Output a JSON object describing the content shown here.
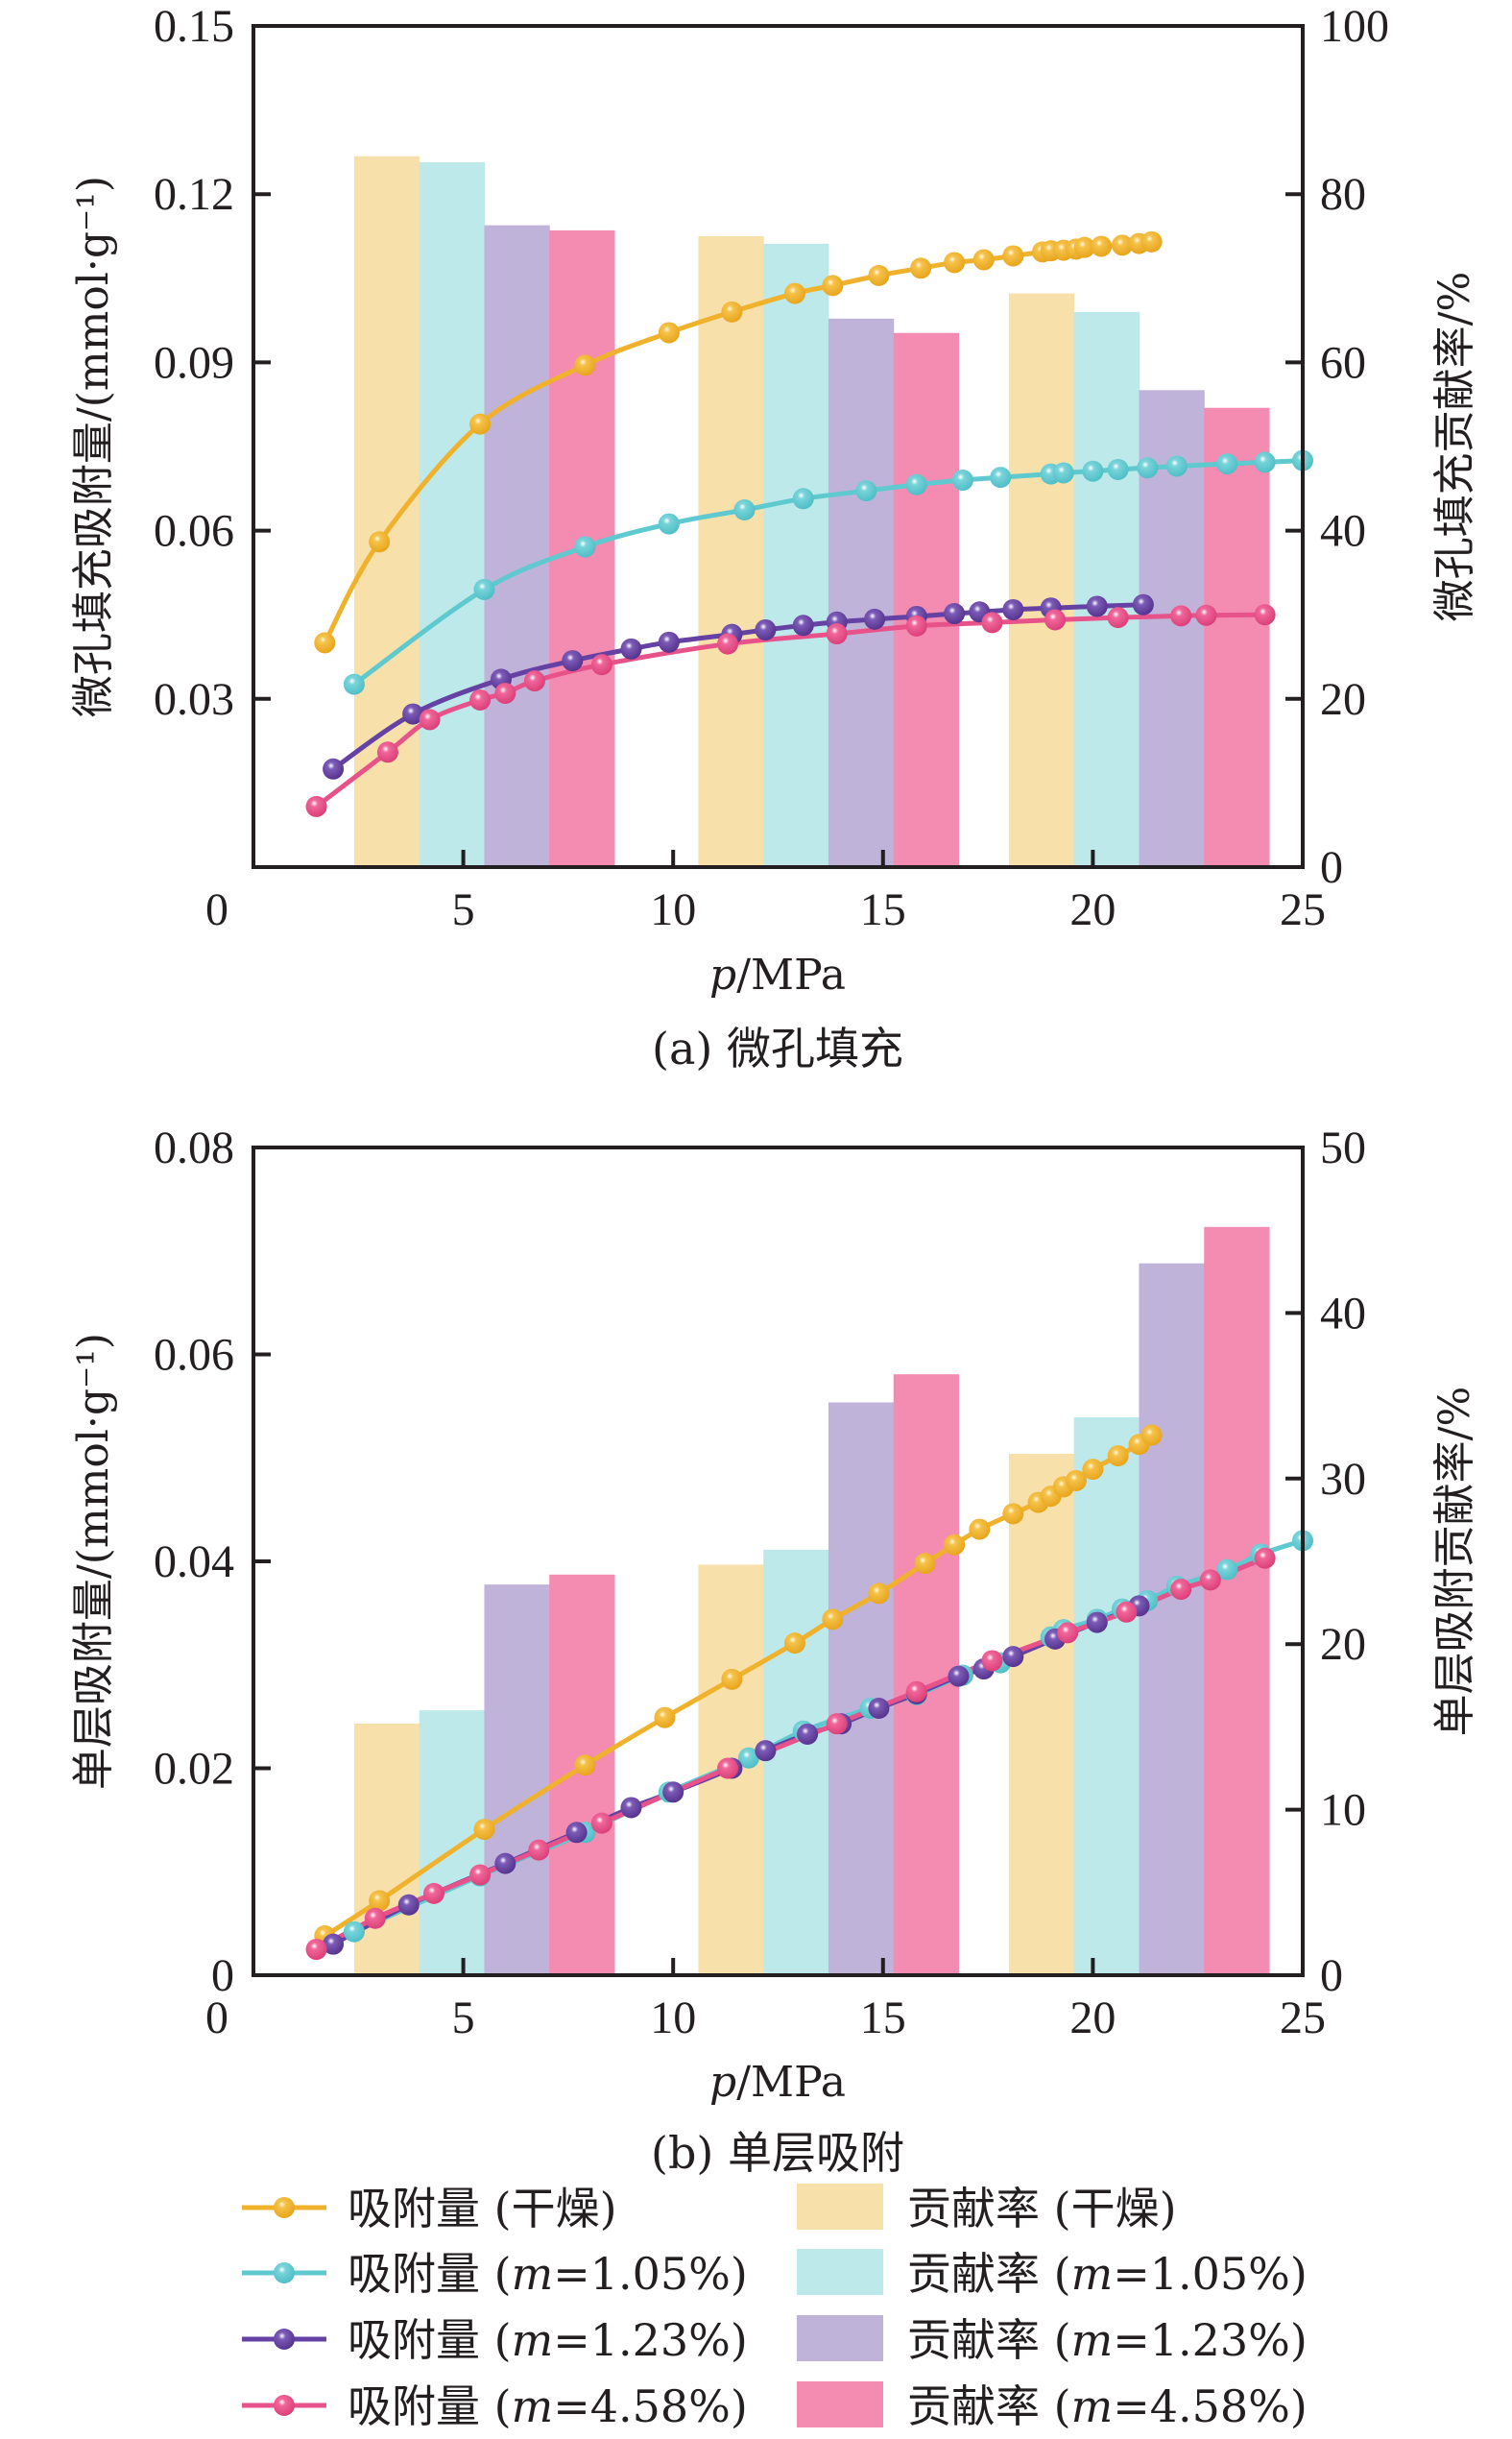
{
  "colors": {
    "dry_line": "#f0b22c",
    "m105_line": "#5fc9d0",
    "m123_line": "#6541a3",
    "m458_line": "#e8528a",
    "dry_bar": "#f8e0aa",
    "m105_bar": "#bde9ea",
    "m123_bar": "#c0b3d9",
    "m458_bar": "#f48bb0",
    "axis": "#231f20"
  },
  "legend": {
    "placement": "bottom",
    "lines": [
      {
        "key": "dry",
        "label": "吸附量 (干燥)"
      },
      {
        "key": "m105",
        "label_prefix": "吸附量 (",
        "label_italic": "m",
        "label_suffix": "=1.05%)"
      },
      {
        "key": "m123",
        "label_prefix": "吸附量 (",
        "label_italic": "m",
        "label_suffix": "=1.23%)"
      },
      {
        "key": "m458",
        "label_prefix": "吸附量 (",
        "label_italic": "m",
        "label_suffix": "=4.58%)"
      }
    ],
    "bars": [
      {
        "key": "dry",
        "label": "贡献率 (干燥)"
      },
      {
        "key": "m105",
        "label_prefix": "贡献率 (",
        "label_italic": "m",
        "label_suffix": "=1.05%)"
      },
      {
        "key": "m123",
        "label_prefix": "贡献率 (",
        "label_italic": "m",
        "label_suffix": "=1.23%)"
      },
      {
        "key": "m458",
        "label_prefix": "贡献率 (",
        "label_italic": "m",
        "label_suffix": "=4.58%)"
      }
    ]
  },
  "chart_data": [
    {
      "type": "bar+line",
      "caption": "(a) 微孔填充",
      "xlabel_italic": "p",
      "xlabel": "/MPa",
      "ylabel": "微孔填充吸附量/(mmol·g⁻¹)",
      "y2label": "微孔填充贡献率/%",
      "xlim": [
        0,
        25
      ],
      "ylim": [
        0,
        0.15
      ],
      "y2lim": [
        0,
        100
      ],
      "xticks": [
        "0",
        "5",
        "10",
        "15",
        "20",
        "25"
      ],
      "yticks": [
        "0.15",
        "0.12",
        "0.09",
        "0.06",
        "0.03"
      ],
      "y2ticks": [
        "100",
        "80",
        "60",
        "40",
        "20",
        "0"
      ],
      "grid": false,
      "bar_groups": [
        {
          "x_start": 2.4,
          "values": {
            "dry": 84.5,
            "m105": 83.8,
            "m123": 76.3,
            "m458": 75.7
          }
        },
        {
          "x_start": 10.6,
          "values": {
            "dry": 75.0,
            "m105": 74.1,
            "m123": 65.2,
            "m458": 63.5
          }
        },
        {
          "x_start": 18.0,
          "values": {
            "dry": 68.2,
            "m105": 66.0,
            "m123": 56.7,
            "m458": 54.6
          }
        }
      ],
      "bar_width_mpa": 1.55,
      "series": [
        {
          "key": "dry",
          "name": "吸附量 (干燥)",
          "x": [
            1.7,
            3.0,
            5.4,
            7.9,
            9.9,
            11.4,
            12.9,
            13.8,
            14.9,
            15.9,
            16.7,
            17.4,
            18.1,
            18.8,
            19.0,
            19.3,
            19.6,
            19.8,
            20.2,
            20.7,
            21.1,
            21.4
          ],
          "y": [
            0.04,
            0.058,
            0.079,
            0.0895,
            0.0953,
            0.099,
            0.1023,
            0.1037,
            0.1055,
            0.1068,
            0.1078,
            0.1083,
            0.109,
            0.1097,
            0.1099,
            0.11,
            0.1102,
            0.1105,
            0.1107,
            0.1109,
            0.1112,
            0.1115
          ]
        },
        {
          "key": "m105",
          "name": "吸附量 (m=1.05%)",
          "x": [
            2.4,
            5.5,
            7.9,
            9.9,
            11.7,
            13.1,
            14.6,
            15.8,
            16.9,
            17.8,
            19.0,
            19.3,
            20.0,
            20.6,
            21.3,
            22.0,
            23.2,
            24.1,
            25.0
          ],
          "y": [
            0.0326,
            0.0495,
            0.0571,
            0.0612,
            0.0637,
            0.0657,
            0.0671,
            0.0682,
            0.069,
            0.0695,
            0.0701,
            0.0703,
            0.0706,
            0.0709,
            0.0712,
            0.0715,
            0.0719,
            0.0722,
            0.0725
          ]
        },
        {
          "key": "m123",
          "name": "吸附量 (m=1.23%)",
          "x": [
            1.9,
            3.8,
            5.9,
            7.6,
            9.0,
            9.9,
            11.4,
            12.2,
            13.1,
            13.9,
            14.8,
            15.8,
            16.7,
            17.3,
            18.1,
            19.0,
            20.1,
            21.2
          ],
          "y": [
            0.0175,
            0.0273,
            0.0335,
            0.0368,
            0.0389,
            0.0401,
            0.0415,
            0.0423,
            0.0431,
            0.0437,
            0.0442,
            0.0447,
            0.0452,
            0.0455,
            0.0459,
            0.0462,
            0.0465,
            0.0468
          ]
        },
        {
          "key": "m458",
          "name": "吸附量 (m=4.58%)",
          "x": [
            1.5,
            3.2,
            4.2,
            5.4,
            6.0,
            6.7,
            8.3,
            11.3,
            13.9,
            15.8,
            17.6,
            19.1,
            20.6,
            22.1,
            22.7,
            24.1
          ],
          "y": [
            0.0108,
            0.0205,
            0.0263,
            0.0298,
            0.031,
            0.0332,
            0.0361,
            0.0398,
            0.0416,
            0.043,
            0.0436,
            0.0441,
            0.0445,
            0.0448,
            0.0449,
            0.045
          ]
        }
      ]
    },
    {
      "type": "bar+line",
      "caption": "(b) 单层吸附",
      "xlabel_italic": "p",
      "xlabel": "/MPa",
      "ylabel": "单层吸附量/(mmol·g⁻¹)",
      "y2label": "单层吸附贡献率/%",
      "xlim": [
        0,
        25
      ],
      "ylim": [
        0,
        0.08
      ],
      "y2lim": [
        0,
        50
      ],
      "xticks": [
        "0",
        "5",
        "10",
        "15",
        "20",
        "25"
      ],
      "yticks": [
        "0.08",
        "0.06",
        "0.04",
        "0.02",
        "0"
      ],
      "y2ticks": [
        "50",
        "40",
        "30",
        "20",
        "10",
        "0"
      ],
      "grid": false,
      "bar_groups": [
        {
          "x_start": 2.4,
          "values": {
            "dry": 15.2,
            "m105": 16.0,
            "m123": 23.6,
            "m458": 24.2
          }
        },
        {
          "x_start": 10.6,
          "values": {
            "dry": 24.8,
            "m105": 25.7,
            "m123": 34.6,
            "m458": 36.3
          }
        },
        {
          "x_start": 18.0,
          "values": {
            "dry": 31.5,
            "m105": 33.7,
            "m123": 43.0,
            "m458": 45.2
          }
        }
      ],
      "bar_width_mpa": 1.55,
      "series": [
        {
          "key": "dry",
          "name": "吸附量 (干燥)",
          "x": [
            1.7,
            3.0,
            5.5,
            7.9,
            9.8,
            11.4,
            12.9,
            13.8,
            14.9,
            16.0,
            16.7,
            17.3,
            18.1,
            18.7,
            19.0,
            19.3,
            19.6,
            20.0,
            20.6,
            21.1,
            21.4
          ],
          "y": [
            0.0038,
            0.0072,
            0.0141,
            0.0203,
            0.0249,
            0.0286,
            0.0321,
            0.0344,
            0.0369,
            0.0398,
            0.0416,
            0.0431,
            0.0446,
            0.0457,
            0.0463,
            0.0472,
            0.0478,
            0.0489,
            0.0502,
            0.0513,
            0.0522
          ]
        },
        {
          "key": "m105",
          "name": "吸附量 (m=1.05%)",
          "x": [
            2.4,
            5.4,
            7.9,
            9.9,
            11.8,
            13.1,
            14.7,
            15.8,
            16.9,
            17.8,
            19.0,
            19.3,
            20.1,
            20.7,
            21.3,
            22.0,
            23.2,
            24.0,
            25.0
          ],
          "y": [
            0.0042,
            0.0096,
            0.0138,
            0.0177,
            0.021,
            0.0236,
            0.0258,
            0.0271,
            0.029,
            0.0302,
            0.0327,
            0.0334,
            0.0344,
            0.0354,
            0.0362,
            0.0376,
            0.0392,
            0.0407,
            0.042
          ]
        },
        {
          "key": "m123",
          "name": "吸附量 (m=1.23%)",
          "x": [
            1.9,
            3.7,
            6.0,
            7.7,
            9.0,
            10.0,
            11.4,
            12.2,
            13.2,
            14.0,
            14.9,
            15.8,
            16.8,
            17.4,
            18.1,
            19.1,
            20.1,
            21.1
          ],
          "y": [
            0.003,
            0.0068,
            0.0108,
            0.0138,
            0.0162,
            0.0177,
            0.02,
            0.0217,
            0.0233,
            0.0243,
            0.0258,
            0.0272,
            0.0289,
            0.0296,
            0.0308,
            0.0325,
            0.0341,
            0.0357
          ]
        },
        {
          "key": "m458",
          "name": "吸附量 (m=4.58%)",
          "x": [
            1.5,
            2.9,
            4.3,
            5.4,
            6.8,
            8.3,
            11.3,
            13.9,
            15.8,
            17.6,
            19.4,
            20.8,
            22.1,
            22.8,
            24.1
          ],
          "y": [
            0.0025,
            0.0055,
            0.0079,
            0.0097,
            0.0121,
            0.0147,
            0.02,
            0.0243,
            0.0274,
            0.0304,
            0.0331,
            0.0351,
            0.0373,
            0.0382,
            0.0403
          ]
        }
      ]
    }
  ]
}
